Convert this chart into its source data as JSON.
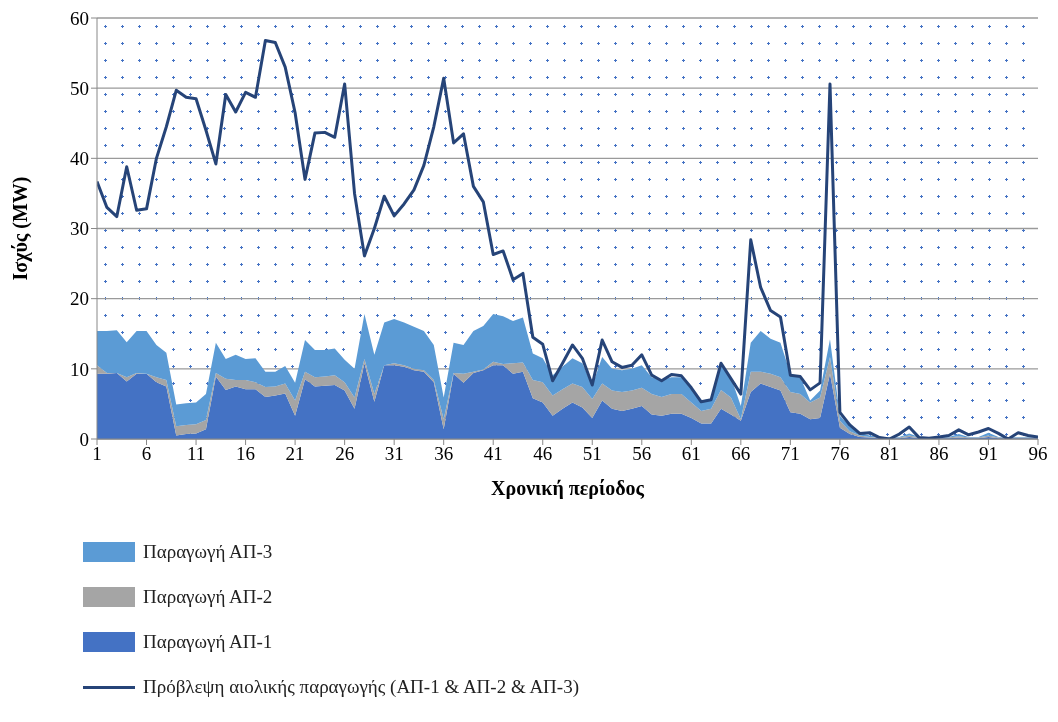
{
  "chart_data": {
    "type": "area",
    "xlabel": "Χρονική περίοδος",
    "ylabel": "Ισχύς (MW)",
    "x": [
      1,
      2,
      3,
      4,
      5,
      6,
      7,
      8,
      9,
      10,
      11,
      12,
      13,
      14,
      15,
      16,
      17,
      18,
      19,
      20,
      21,
      22,
      23,
      24,
      25,
      26,
      27,
      28,
      29,
      30,
      31,
      32,
      33,
      34,
      35,
      36,
      37,
      38,
      39,
      40,
      41,
      42,
      43,
      44,
      45,
      46,
      47,
      48,
      49,
      50,
      51,
      52,
      53,
      54,
      55,
      56,
      57,
      58,
      59,
      60,
      61,
      62,
      63,
      64,
      65,
      66,
      67,
      68,
      69,
      70,
      71,
      72,
      73,
      74,
      75,
      76,
      77,
      78,
      79,
      80,
      81,
      82,
      83,
      84,
      85,
      86,
      87,
      88,
      89,
      90,
      91,
      92,
      93,
      94,
      95,
      96
    ],
    "xlim": [
      1,
      96
    ],
    "xticks": [
      1,
      6,
      11,
      16,
      21,
      26,
      31,
      36,
      41,
      46,
      51,
      56,
      61,
      66,
      71,
      76,
      81,
      86,
      91,
      96
    ],
    "ylim": [
      0,
      60
    ],
    "yticks": [
      0,
      10,
      20,
      30,
      40,
      50,
      60
    ],
    "grid": "y",
    "stacked": true,
    "legend": "bottom",
    "series": [
      {
        "name": "Παραγωγή ΑΠ-1",
        "color": "#4472c4",
        "values": [
          9.3,
          9.3,
          9.4,
          8.2,
          9.3,
          9.3,
          8.1,
          7.5,
          0.5,
          0.7,
          0.8,
          1.4,
          8.9,
          7.0,
          7.5,
          7.1,
          7.1,
          6.0,
          6.2,
          6.5,
          3.3,
          8.5,
          7.5,
          7.6,
          7.7,
          6.9,
          4.3,
          10.8,
          5.3,
          10.5,
          10.5,
          10.3,
          9.8,
          9.6,
          8.1,
          1.4,
          9.3,
          8.0,
          9.4,
          9.8,
          10.5,
          10.5,
          9.3,
          9.6,
          5.8,
          5.2,
          3.3,
          4.3,
          5.2,
          4.5,
          3.0,
          5.5,
          4.3,
          4.0,
          4.3,
          4.7,
          3.5,
          3.3,
          3.6,
          3.6,
          3.0,
          2.2,
          2.2,
          4.3,
          3.5,
          2.6,
          6.7,
          7.9,
          7.4,
          6.9,
          3.8,
          3.6,
          2.8,
          3.0,
          9.3,
          1.6,
          0.7,
          0.3,
          0.2,
          0.1,
          0.1,
          0.1,
          0.3,
          0.1,
          0.1,
          0.1,
          0.1,
          0.2,
          0.1,
          0.1,
          0.3,
          0.1,
          0.1,
          0.1,
          0.1,
          0.1
        ]
      },
      {
        "name": "Παραγωγή ΑΠ-2",
        "color": "#a5a5a5",
        "values": [
          1.2,
          0.1,
          0,
          0.6,
          0.1,
          0,
          0.7,
          0.9,
          1.3,
          1.3,
          1.3,
          1.3,
          0.5,
          1.6,
          0.9,
          1.3,
          1.0,
          1.4,
          1.3,
          1.4,
          2.2,
          1.1,
          1.3,
          1.3,
          1.4,
          1.2,
          1.6,
          0.6,
          1.1,
          0,
          0.3,
          0.2,
          0.2,
          0.2,
          0.3,
          1.4,
          0.1,
          1.3,
          0.2,
          0.1,
          0.5,
          0.2,
          1.5,
          1.3,
          2.6,
          2.9,
          2.9,
          2.8,
          2.7,
          2.9,
          2.7,
          2.4,
          2.6,
          2.7,
          2.6,
          2.6,
          2.9,
          2.7,
          2.8,
          2.8,
          2.2,
          1.8,
          2.1,
          2.7,
          2.4,
          0.2,
          2.9,
          1.7,
          1.9,
          1.9,
          2.9,
          2.8,
          2.4,
          2.9,
          2.4,
          1.0,
          0.4,
          0.2,
          0.1,
          0.1,
          0.1,
          0.1,
          0.2,
          0.1,
          0.1,
          0.1,
          0.1,
          0.2,
          0.1,
          0.1,
          0.2,
          0.1,
          0.1,
          0.1,
          0.1,
          0.1
        ]
      },
      {
        "name": "Παραγωγή ΑΠ-3",
        "color": "#5b9bd5",
        "values": [
          4.9,
          6.0,
          6.1,
          5.0,
          6.0,
          6.1,
          4.6,
          3.9,
          3.1,
          3.1,
          3.1,
          3.7,
          4.3,
          2.8,
          3.6,
          3.0,
          3.4,
          2.2,
          2.1,
          2.5,
          2.5,
          4.5,
          3.9,
          3.8,
          3.8,
          3.2,
          4.1,
          6.4,
          5.6,
          6.1,
          6.3,
          6.1,
          6.0,
          5.6,
          5.0,
          3.1,
          4.3,
          4.1,
          5.8,
          6.2,
          6.8,
          6.8,
          6.0,
          6.4,
          3.8,
          3.4,
          2.9,
          3.2,
          3.6,
          3.4,
          1.9,
          3.8,
          3.1,
          3.1,
          3.1,
          3.2,
          2.4,
          2.4,
          2.4,
          2.4,
          1.9,
          1.5,
          1.4,
          3.5,
          2.9,
          1.9,
          4.1,
          5.8,
          5.0,
          4.9,
          2.6,
          2.4,
          0.3,
          1.0,
          2.5,
          0.7,
          0.7,
          0.4,
          0.2,
          0.1,
          0.1,
          0.1,
          0.3,
          0.1,
          0.1,
          0.1,
          0.1,
          0.3,
          0.1,
          0.1,
          0.4,
          0.1,
          0.1,
          0.1,
          0.1,
          0.1
        ]
      },
      {
        "name": "Πρόβλεψη αιολικής παραγωγής (ΑΠ-1 & ΑΠ-2 & ΑΠ-3)",
        "type": "line",
        "color": "#264478",
        "values": [
          36.7,
          33,
          31.7,
          38.8,
          32.6,
          32.8,
          40,
          44.5,
          49.7,
          48.7,
          48.5,
          44,
          39.2,
          49.1,
          46.6,
          49.4,
          48.7,
          56.8,
          56.5,
          53,
          46.5,
          37,
          43.6,
          43.7,
          43,
          50.6,
          35,
          26.1,
          30,
          34.6,
          31.8,
          33.5,
          35.5,
          39,
          44.5,
          51.4,
          42.2,
          43.5,
          36,
          33.8,
          26.3,
          26.8,
          22.7,
          23.6,
          14.5,
          13.5,
          8.3,
          10.8,
          13.4,
          11.5,
          7.7,
          14.1,
          11,
          10.2,
          10.5,
          12,
          9.1,
          8.3,
          9.2,
          9,
          7.3,
          5.3,
          5.6,
          10.8,
          8.6,
          6.4,
          28.4,
          21.6,
          18.3,
          17.4,
          9.1,
          8.9,
          7,
          8,
          50.6,
          3.8,
          2,
          0.8,
          0.9,
          0.2,
          0,
          0.7,
          1.7,
          0.2,
          0.1,
          0.3,
          0.5,
          1.3,
          0.6,
          1,
          1.5,
          0.8,
          0,
          0.9,
          0.5,
          0.3
        ]
      }
    ]
  }
}
